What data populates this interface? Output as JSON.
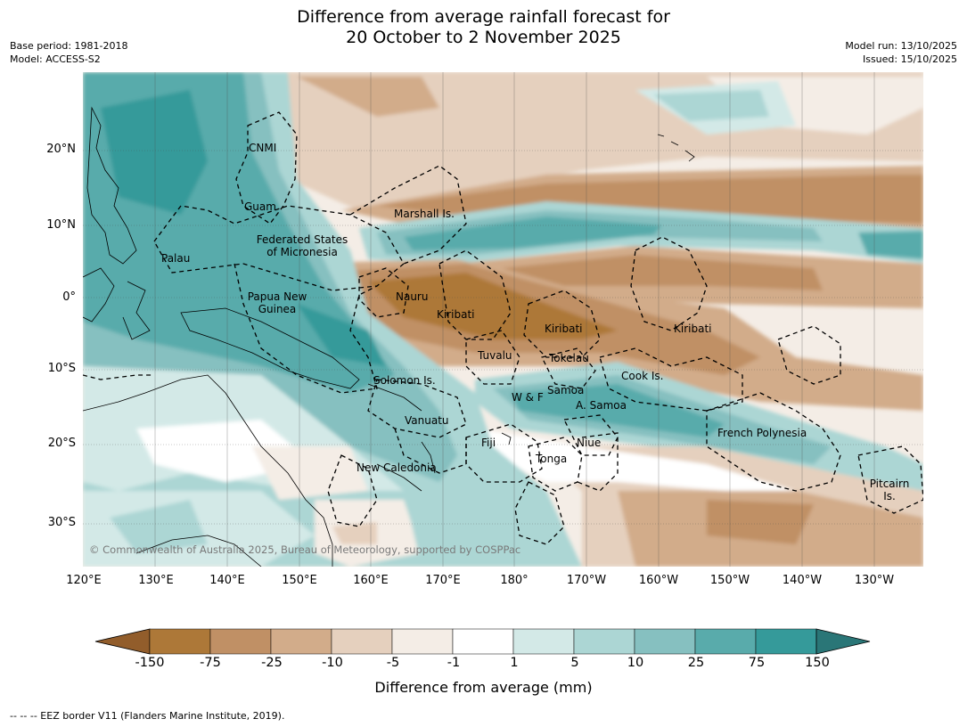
{
  "title": {
    "line1": "Difference from average rainfall forecast for",
    "line2": "20 October to 2 November 2025"
  },
  "meta_left": {
    "base_period": "Base period: 1981-2018",
    "model": "Model: ACCESS-S2"
  },
  "meta_right": {
    "model_run": "Model run: 13/10/2025",
    "issued": "Issued: 15/10/2025"
  },
  "map": {
    "lat_labels": [
      "20°N",
      "10°N",
      "0°",
      "10°S",
      "20°S",
      "30°S"
    ],
    "lon_labels": [
      "120°E",
      "130°E",
      "140°E",
      "150°E",
      "160°E",
      "170°E",
      "180°",
      "170°W",
      "160°W",
      "150°W",
      "140°W",
      "130°W"
    ],
    "regions": {
      "cnmi": "CNMI",
      "guam": "Guam",
      "marshall": "Marshall Is.",
      "fsm_line1": "Federated States",
      "fsm_line2": "of Micronesia",
      "palau": "Palau",
      "nauru": "Nauru",
      "png_line1": "Papua New",
      "png_line2": "Guinea",
      "kiribati_w": "Kiribati",
      "kiribati_c": "Kiribati",
      "kiribati_e": "Kiribati",
      "tuvalu": "Tuvalu",
      "tokelau": "Tokelau",
      "cook": "Cook Is.",
      "solomon": "Solomon Is.",
      "wf": "W & F",
      "samoa": "Samoa",
      "asamoa": "A. Samoa",
      "vanuatu": "Vanuatu",
      "fiji": "Fiji",
      "niue": "Niue",
      "tonga": "Tonga",
      "newcal": "New Caledonia",
      "frenchpoly": "French Polynesia",
      "pitcairn_line1": "Pitcairn",
      "pitcairn_line2": "Is."
    },
    "copyright": "© Commonwealth of Australia 2025, Bureau of Meteorology, supported by COSPPac"
  },
  "colorbar": {
    "labels": [
      "-150",
      "-75",
      "-25",
      "-10",
      "-5",
      "-1",
      "1",
      "5",
      "10",
      "25",
      "75",
      "150"
    ],
    "colors": [
      "#925d2b",
      "#ad7838",
      "#c09065",
      "#d2ac8a",
      "#e5d0be",
      "#f4ede6",
      "#ffffff",
      "#d3e9e7",
      "#acd6d4",
      "#86c0c0",
      "#59abab",
      "#359a9a",
      "#2a7677"
    ],
    "title": "Difference from average (mm)"
  },
  "footnote": "--  --  -- EEZ border V11 (Flanders Marine Institute, 2019)."
}
